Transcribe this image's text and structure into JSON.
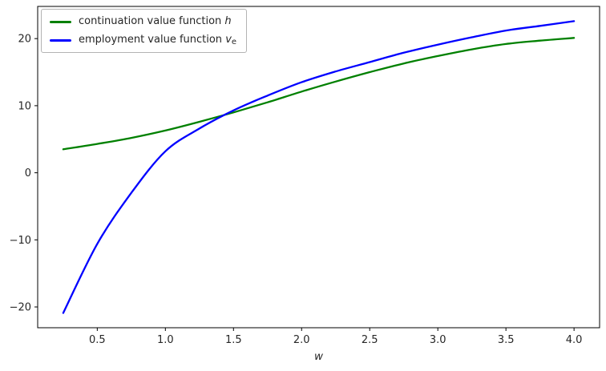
{
  "figure": {
    "background": "#ffffff",
    "spine_color": "#000000"
  },
  "legend": {
    "items": [
      {
        "text": "continuation value function ",
        "math": "h",
        "sub": "",
        "color": "#008000"
      },
      {
        "text": "employment value function ",
        "math": "v",
        "sub": "e",
        "color": "#0000ff"
      }
    ]
  },
  "chart_data": {
    "type": "line",
    "title": "",
    "xlabel": "w",
    "ylabel": "",
    "grid": false,
    "legend_position": "upper left",
    "xlim": [
      0.0625,
      4.1875
    ],
    "ylim": [
      -23.1,
      24.8
    ],
    "x_ticks": [
      0.5,
      1.0,
      1.5,
      2.0,
      2.5,
      3.0,
      3.5,
      4.0
    ],
    "x_tick_labels": [
      "0.5",
      "1.0",
      "1.5",
      "2.0",
      "2.5",
      "3.0",
      "3.5",
      "4.0"
    ],
    "y_ticks": [
      -20,
      -10,
      0,
      10,
      20
    ],
    "y_tick_labels": [
      "−20",
      "−10",
      "0",
      "10",
      "20"
    ],
    "x": [
      0.25,
      0.5,
      0.75,
      1.0,
      1.25,
      1.5,
      1.75,
      2.0,
      2.25,
      2.5,
      2.75,
      3.0,
      3.25,
      3.5,
      3.75,
      4.0
    ],
    "series": [
      {
        "name": "continuation value function h",
        "color": "#008000",
        "values": [
          3.5,
          4.3,
          5.2,
          6.3,
          7.6,
          9.0,
          10.5,
          12.1,
          13.6,
          15.0,
          16.3,
          17.4,
          18.4,
          19.2,
          19.7,
          20.1
        ]
      },
      {
        "name": "employment value function v_e",
        "color": "#0000ff",
        "values": [
          -20.9,
          -10.6,
          -3.0,
          3.2,
          6.6,
          9.3,
          11.5,
          13.5,
          15.1,
          16.5,
          17.9,
          19.1,
          20.2,
          21.2,
          21.9,
          22.6
        ]
      }
    ],
    "annotations": []
  }
}
